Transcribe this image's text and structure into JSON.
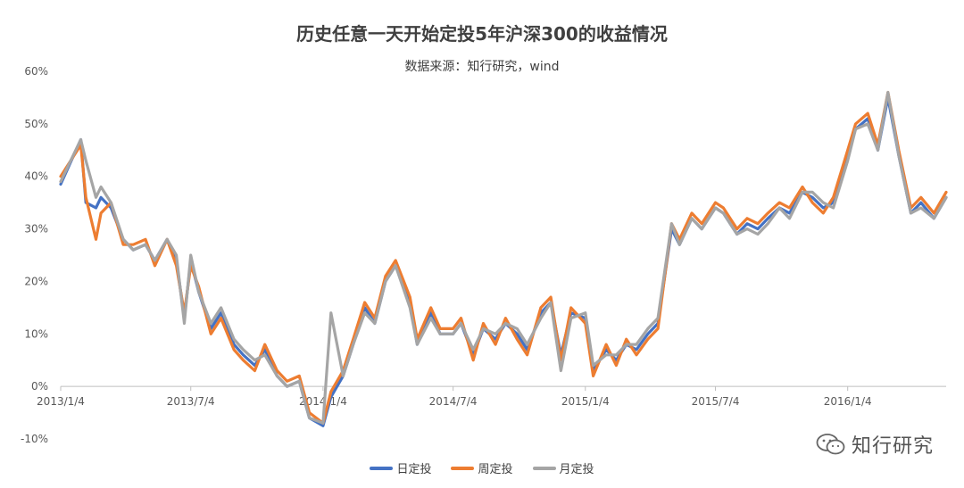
{
  "chart_data": {
    "type": "line",
    "title": "历史任意一天开始定投5年沪深300的收益情况",
    "subtitle": "数据来源：知行研究，wind",
    "y_ticks": [
      "60%",
      "50%",
      "40%",
      "30%",
      "20%",
      "10%",
      "0%",
      "-10%"
    ],
    "ylim": [
      -0.1,
      0.6
    ],
    "x_tick_labels": [
      "2013/1/4",
      "2013/7/4",
      "2014/1/4",
      "2014/7/4",
      "2015/1/4",
      "2015/7/4",
      "2016/1/4"
    ],
    "xlim": [
      "2013-01-04",
      "2016-05-20"
    ],
    "grid": false,
    "legend_position": "bottom",
    "x": [
      "2013-01-04",
      "2013-02-01",
      "2013-02-08",
      "2013-02-22",
      "2013-03-01",
      "2013-03-15",
      "2013-04-01",
      "2013-04-15",
      "2013-05-02",
      "2013-05-15",
      "2013-06-01",
      "2013-06-14",
      "2013-06-25",
      "2013-07-04",
      "2013-07-15",
      "2013-08-01",
      "2013-08-15",
      "2013-09-02",
      "2013-09-15",
      "2013-10-01",
      "2013-10-15",
      "2013-11-01",
      "2013-11-15",
      "2013-12-02",
      "2013-12-16",
      "2014-01-04",
      "2014-01-15",
      "2014-02-01",
      "2014-02-15",
      "2014-03-03",
      "2014-03-17",
      "2014-04-01",
      "2014-04-15",
      "2014-05-05",
      "2014-05-15",
      "2014-06-03",
      "2014-06-16",
      "2014-07-04",
      "2014-07-15",
      "2014-08-01",
      "2014-08-15",
      "2014-09-01",
      "2014-09-15",
      "2014-10-01",
      "2014-10-15",
      "2014-11-03",
      "2014-11-17",
      "2014-12-01",
      "2014-12-15",
      "2015-01-04",
      "2015-01-15",
      "2015-02-02",
      "2015-02-16",
      "2015-03-02",
      "2015-03-16",
      "2015-04-01",
      "2015-04-15",
      "2015-05-04",
      "2015-05-15",
      "2015-06-01",
      "2015-06-15",
      "2015-07-04",
      "2015-07-15",
      "2015-08-03",
      "2015-08-17",
      "2015-09-01",
      "2015-09-15",
      "2015-10-01",
      "2015-10-15",
      "2015-11-02",
      "2015-11-16",
      "2015-12-01",
      "2015-12-15",
      "2016-01-04",
      "2016-01-15",
      "2016-02-01",
      "2016-02-15",
      "2016-02-29",
      "2016-03-15",
      "2016-04-01",
      "2016-04-15",
      "2016-05-03",
      "2016-05-20"
    ],
    "series": [
      {
        "name": "日定投",
        "color": "#4472C4",
        "values": [
          0.385,
          0.47,
          0.35,
          0.34,
          0.36,
          0.34,
          0.28,
          0.26,
          0.27,
          0.24,
          0.28,
          0.24,
          0.13,
          0.24,
          0.18,
          0.11,
          0.14,
          0.08,
          0.06,
          0.04,
          0.07,
          0.02,
          0.0,
          0.01,
          -0.06,
          -0.075,
          -0.02,
          0.02,
          0.08,
          0.15,
          0.12,
          0.2,
          0.23,
          0.16,
          0.08,
          0.14,
          0.1,
          0.1,
          0.12,
          0.06,
          0.11,
          0.09,
          0.12,
          0.1,
          0.07,
          0.14,
          0.16,
          0.06,
          0.14,
          0.13,
          0.03,
          0.07,
          0.05,
          0.08,
          0.07,
          0.1,
          0.12,
          0.3,
          0.27,
          0.32,
          0.3,
          0.34,
          0.33,
          0.29,
          0.31,
          0.3,
          0.32,
          0.34,
          0.33,
          0.37,
          0.36,
          0.34,
          0.35,
          0.44,
          0.49,
          0.51,
          0.45,
          0.55,
          0.44,
          0.33,
          0.35,
          0.32,
          0.36
        ]
      },
      {
        "name": "周定投",
        "color": "#ED7D31",
        "values": [
          0.4,
          0.46,
          0.36,
          0.28,
          0.33,
          0.35,
          0.27,
          0.27,
          0.28,
          0.23,
          0.28,
          0.23,
          0.14,
          0.23,
          0.19,
          0.1,
          0.13,
          0.07,
          0.05,
          0.03,
          0.08,
          0.03,
          0.01,
          0.02,
          -0.05,
          -0.07,
          -0.01,
          0.03,
          0.09,
          0.16,
          0.13,
          0.21,
          0.24,
          0.17,
          0.09,
          0.15,
          0.11,
          0.11,
          0.13,
          0.05,
          0.12,
          0.08,
          0.13,
          0.09,
          0.06,
          0.15,
          0.17,
          0.05,
          0.15,
          0.12,
          0.02,
          0.08,
          0.04,
          0.09,
          0.06,
          0.09,
          0.11,
          0.31,
          0.28,
          0.33,
          0.31,
          0.35,
          0.34,
          0.3,
          0.32,
          0.31,
          0.33,
          0.35,
          0.34,
          0.38,
          0.35,
          0.33,
          0.36,
          0.45,
          0.5,
          0.52,
          0.46,
          0.56,
          0.45,
          0.34,
          0.36,
          0.33,
          0.37
        ]
      },
      {
        "name": "月定投",
        "color": "#A5A5A5",
        "values": [
          0.39,
          0.47,
          0.43,
          0.36,
          0.38,
          0.35,
          0.28,
          0.26,
          0.27,
          0.24,
          0.28,
          0.25,
          0.12,
          0.25,
          0.18,
          0.12,
          0.15,
          0.09,
          0.07,
          0.05,
          0.06,
          0.02,
          0.0,
          0.01,
          -0.06,
          -0.07,
          0.14,
          0.02,
          0.08,
          0.14,
          0.12,
          0.2,
          0.23,
          0.15,
          0.08,
          0.13,
          0.1,
          0.1,
          0.12,
          0.07,
          0.11,
          0.1,
          0.12,
          0.11,
          0.08,
          0.13,
          0.16,
          0.03,
          0.13,
          0.14,
          0.04,
          0.06,
          0.06,
          0.08,
          0.08,
          0.11,
          0.13,
          0.31,
          0.27,
          0.32,
          0.3,
          0.34,
          0.33,
          0.29,
          0.3,
          0.29,
          0.31,
          0.34,
          0.32,
          0.37,
          0.37,
          0.35,
          0.34,
          0.43,
          0.49,
          0.5,
          0.45,
          0.56,
          0.44,
          0.33,
          0.34,
          0.32,
          0.36
        ]
      }
    ]
  },
  "watermark": {
    "text": "知行研究",
    "icon": "wechat-icon"
  }
}
